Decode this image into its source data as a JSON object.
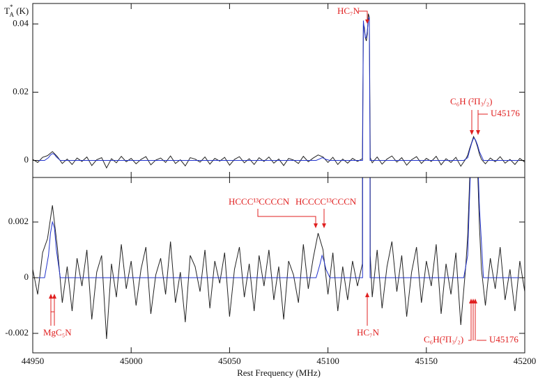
{
  "chart_data": {
    "type": "line",
    "xlabel": "Rest Frequency (MHz)",
    "ylabel": [
      "T",
      "*",
      "A",
      " (K)"
    ],
    "xlim": [
      44950,
      45200
    ],
    "xticks": [
      44950,
      45000,
      45050,
      45100,
      45150,
      45200
    ],
    "grid": false,
    "panels": [
      {
        "ylim": [
          -0.005,
          0.046
        ],
        "yticks": [
          0,
          0.02,
          0.04
        ]
      },
      {
        "ylim": [
          -0.0027,
          0.0036
        ],
        "yticks": [
          -0.002,
          0,
          0.002
        ]
      }
    ],
    "series": [
      {
        "color": "#222222",
        "x": [
          44950,
          44952.5,
          44955,
          44957.5,
          44960,
          44962.5,
          44965,
          44967.5,
          44970,
          44972.5,
          44975,
          44977.5,
          44980,
          44982.5,
          44985,
          44987.5,
          44990,
          44992.5,
          44995,
          44997.5,
          45000,
          45002.5,
          45005,
          45007.5,
          45010,
          45012.5,
          45015,
          45017.5,
          45020,
          45022.5,
          45025,
          45027.5,
          45030,
          45032.5,
          45035,
          45037.5,
          45040,
          45042.5,
          45045,
          45047.5,
          45050,
          45052.5,
          45055,
          45057.5,
          45060,
          45062.5,
          45065,
          45067.5,
          45070,
          45072.5,
          45075,
          45077.5,
          45080,
          45082.5,
          45085,
          45087.5,
          45090,
          45092.5,
          45095,
          45097.5,
          45100,
          45102.5,
          45105,
          45107.5,
          45110,
          45112.5,
          45115,
          45117.5,
          45118,
          45118.5,
          45119,
          45119.5,
          45120,
          45120.5,
          45121,
          45121.5,
          45122.5,
          45125,
          45127.5,
          45130,
          45132.5,
          45135,
          45137.5,
          45140,
          45142.5,
          45145,
          45147.5,
          45150,
          45152.5,
          45155,
          45157.5,
          45160,
          45162.5,
          45165,
          45167.5,
          45170,
          45171,
          45172,
          45173,
          45174,
          45175,
          45176,
          45177,
          45178,
          45180,
          45182.5,
          45185,
          45187.5,
          45190,
          45192.5,
          45195,
          45197.5,
          45200
        ],
        "values": [
          0.0003,
          -0.0006,
          0.0009,
          0.0014,
          0.0026,
          0.0011,
          -0.0009,
          0.0004,
          -0.0012,
          0.0007,
          -0.0003,
          0.001,
          -0.0015,
          0.0002,
          0.0008,
          -0.0022,
          0.0005,
          -0.0007,
          0.0012,
          -0.0004,
          0.0006,
          -0.001,
          0.0003,
          0.0011,
          -0.0013,
          0.0001,
          0.0007,
          -0.0006,
          0.0013,
          -0.0009,
          0.0002,
          -0.0016,
          0.0008,
          0.0004,
          -0.0005,
          0.001,
          -0.0011,
          0.0006,
          -0.0002,
          0.0009,
          -0.0014,
          0.0003,
          0.0011,
          -0.0007,
          0.0005,
          -0.0012,
          0.0008,
          -0.0003,
          0.001,
          -0.0008,
          0.0004,
          -0.0015,
          0.0006,
          0.0001,
          -0.0009,
          0.0012,
          -0.0004,
          0.0007,
          0.0016,
          0.001,
          -0.0006,
          0.0009,
          -0.0012,
          0.0004,
          -0.0008,
          0.0006,
          -0.0003,
          0.0005,
          0.04,
          0.039,
          0.036,
          0.035,
          0.037,
          0.043,
          0.042,
          0.0008,
          -0.0007,
          0.001,
          -0.0011,
          0.0004,
          0.0013,
          -0.0005,
          0.0008,
          -0.0014,
          0.0002,
          0.0011,
          -0.0009,
          0.0006,
          -0.0003,
          0.0012,
          -0.0013,
          0.0005,
          -0.0006,
          0.0009,
          -0.0017,
          0.0004,
          0.0015,
          0.0035,
          0.0052,
          0.007,
          0.0058,
          0.004,
          0.0018,
          0.0003,
          -0.001,
          0.0007,
          -0.0004,
          0.0011,
          -0.0008,
          0.0003,
          -0.0012,
          0.0006,
          -0.0005
        ]
      },
      {
        "color": "#2233cc",
        "x": [
          44950,
          44956,
          44958,
          44959,
          44960,
          44961,
          44962,
          44964,
          45094,
          45096,
          45097,
          45098,
          45099,
          45101,
          45117.6,
          45118,
          45118.5,
          45119,
          45119.5,
          45120,
          45120.5,
          45121,
          45121.4,
          45169,
          45171,
          45172,
          45173,
          45174,
          45175,
          45176,
          45177,
          45179,
          45200
        ],
        "values": [
          0,
          0,
          0.0008,
          0.0016,
          0.002,
          0.0018,
          0.001,
          0,
          0,
          0.0005,
          0.0008,
          0.0006,
          0.0003,
          0,
          0,
          0.041,
          0.038,
          0.036,
          0.036,
          0.038,
          0.041,
          0.042,
          0,
          0,
          0.0008,
          0.003,
          0.005,
          0.0066,
          0.006,
          0.0045,
          0.0025,
          0,
          0
        ]
      }
    ],
    "annotations": [
      "HC₇N",
      "C₆H (²Π₃/₂)",
      "U45176",
      "HCCC¹³CCCCN",
      "HCCCC¹³CCCN",
      "MgC₅N",
      "HC₇N",
      "C₆H(²Π₃/₂)",
      "U45176"
    ]
  }
}
